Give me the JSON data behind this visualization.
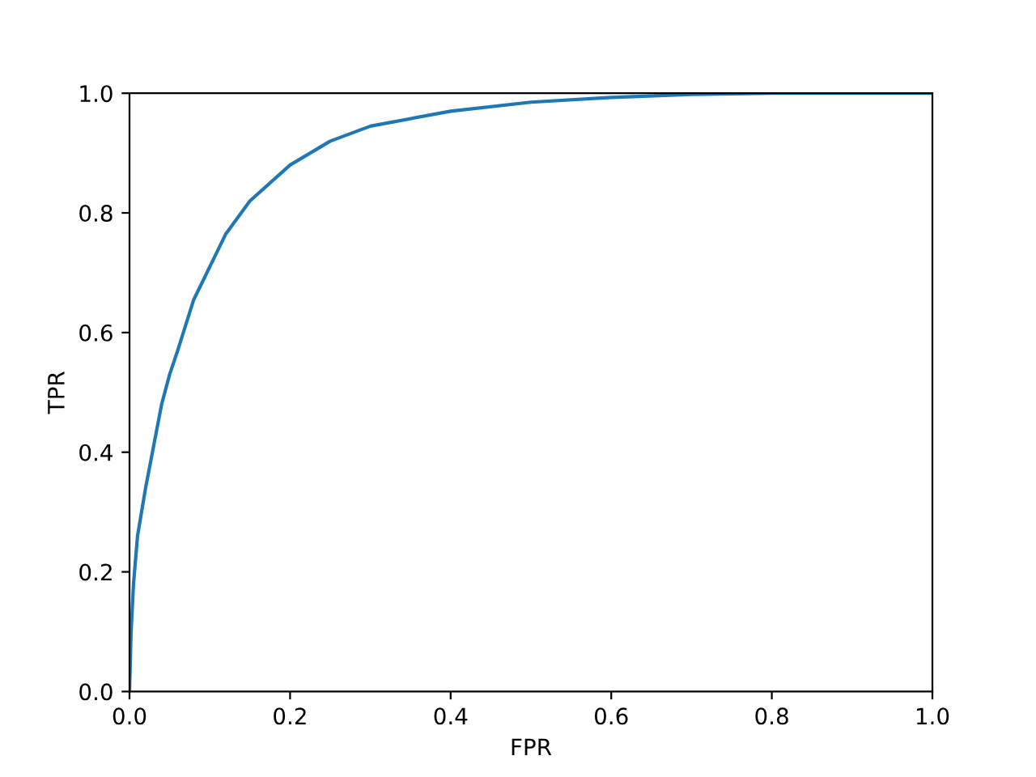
{
  "chart_data": {
    "type": "line",
    "xlabel": "FPR",
    "ylabel": "TPR",
    "series": [
      {
        "color": "#1f77b4",
        "x": [
          0,
          0.002,
          0.005,
          0.01,
          0.02,
          0.03,
          0.04,
          0.05,
          0.06,
          0.08,
          0.1,
          0.12,
          0.15,
          0.2,
          0.25,
          0.3,
          0.4,
          0.5,
          0.6,
          0.7,
          0.8,
          1.0
        ],
        "values": [
          0,
          0.1,
          0.18,
          0.26,
          0.34,
          0.41,
          0.48,
          0.53,
          0.57,
          0.655,
          0.71,
          0.765,
          0.82,
          0.88,
          0.92,
          0.945,
          0.97,
          0.985,
          0.993,
          0.998,
          1.0,
          1.0
        ]
      }
    ],
    "xlim": [
      0,
      1
    ],
    "ylim": [
      0,
      1
    ],
    "xticks": [
      {
        "value": 0,
        "label": "0.0"
      },
      0.2,
      0.4,
      0.6,
      0.8,
      {
        "value": 1,
        "label": "1.0"
      }
    ],
    "yticks": [
      {
        "value": 0,
        "label": "0.0"
      },
      0.2,
      0.4,
      0.6,
      0.8,
      {
        "value": 1,
        "label": "1.0"
      }
    ],
    "grid": false,
    "legend": false
  }
}
